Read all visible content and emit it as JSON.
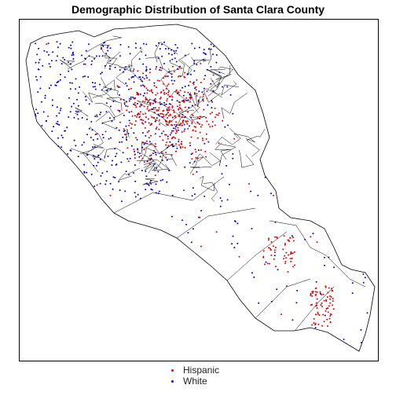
{
  "map": {
    "title": "Demographic Distribution of Santa Clara County"
  },
  "legend": {
    "items": [
      {
        "label": "Hispanic",
        "color": "#e00000"
      },
      {
        "label": "White",
        "color": "#0000cc"
      }
    ]
  }
}
